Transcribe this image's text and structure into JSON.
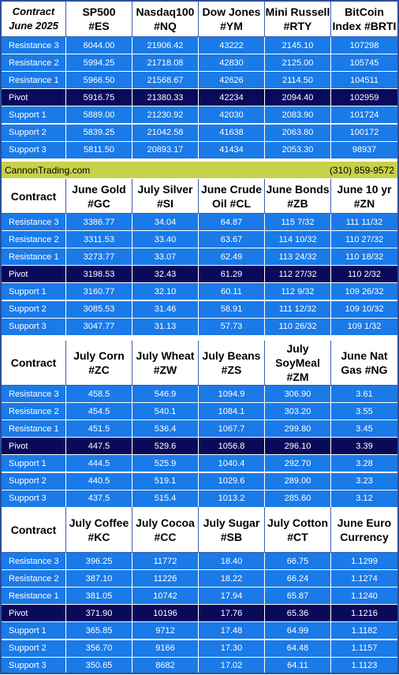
{
  "row_labels": [
    "Resistance 3",
    "Resistance 2",
    "Resistance 1",
    "Pivot",
    "Support 1",
    "Support 2",
    "Support 3"
  ],
  "banner": {
    "site": "CannonTrading.com",
    "phone": "(310) 859-9572"
  },
  "sections": [
    {
      "first_header": [
        "Contract",
        "June 2025"
      ],
      "columns": [
        [
          "SP500",
          "#ES"
        ],
        [
          "Nasdaq100",
          "#NQ"
        ],
        [
          "Dow Jones",
          "#YM"
        ],
        [
          "Mini Russell",
          "#RTY"
        ],
        [
          "BitCoin",
          "Index #BRTI"
        ]
      ],
      "values": [
        [
          "6044.00",
          "21906.42",
          "43222",
          "2145.10",
          "107298"
        ],
        [
          "5994.25",
          "21718.08",
          "42830",
          "2125.00",
          "105745"
        ],
        [
          "5966.50",
          "21568.67",
          "42626",
          "2114.50",
          "104511"
        ],
        [
          "5916.75",
          "21380.33",
          "42234",
          "2094.40",
          "102959"
        ],
        [
          "5889.00",
          "21230.92",
          "42030",
          "2083.90",
          "101724"
        ],
        [
          "5839.25",
          "21042.58",
          "41638",
          "2063.80",
          "100172"
        ],
        [
          "5811.50",
          "20893.17",
          "41434",
          "2053.30",
          "98937"
        ]
      ]
    },
    {
      "first_header": [
        "Contract"
      ],
      "columns": [
        [
          "June Gold",
          "#GC"
        ],
        [
          "July Silver",
          "#SI"
        ],
        [
          "June Crude",
          "Oil #CL"
        ],
        [
          "June Bonds",
          "#ZB"
        ],
        [
          "June 10 yr",
          "#ZN"
        ]
      ],
      "values": [
        [
          "3386.77",
          "34.04",
          "64.87",
          "115  7/32",
          "111 11/32"
        ],
        [
          "3311.53",
          "33.40",
          "63.67",
          "114 10/32",
          "110 27/32"
        ],
        [
          "3273.77",
          "33.07",
          "62.49",
          "113 24/32",
          "110 18/32"
        ],
        [
          "3198.53",
          "32.43",
          "61.29",
          "112 27/32",
          "110  2/32"
        ],
        [
          "3160.77",
          "32.10",
          "60.11",
          "112  9/32",
          "109 26/32"
        ],
        [
          "3085.53",
          "31.46",
          "58.91",
          "111 12/32",
          "109 10/32"
        ],
        [
          "3047.77",
          "31.13",
          "57.73",
          "110 26/32",
          "109  1/32"
        ]
      ]
    },
    {
      "first_header": [
        "Contract"
      ],
      "columns": [
        [
          "July Corn",
          "#ZC"
        ],
        [
          "July  Wheat",
          "#ZW"
        ],
        [
          "July Beans",
          "#ZS"
        ],
        [
          "July",
          "SoyMeal",
          "#ZM"
        ],
        [
          "June Nat",
          "Gas #NG"
        ]
      ],
      "values": [
        [
          "458.5",
          "546.9",
          "1094.9",
          "306.90",
          "3.61"
        ],
        [
          "454.5",
          "540.1",
          "1084.1",
          "303.20",
          "3.55"
        ],
        [
          "451.5",
          "536.4",
          "1067.7",
          "299.80",
          "3.45"
        ],
        [
          "447.5",
          "529.6",
          "1056.8",
          "296.10",
          "3.39"
        ],
        [
          "444.5",
          "525.9",
          "1040.4",
          "292.70",
          "3.28"
        ],
        [
          "440.5",
          "519.1",
          "1029.6",
          "289.00",
          "3.23"
        ],
        [
          "437.5",
          "515.4",
          "1013.2",
          "285.60",
          "3.12"
        ]
      ]
    },
    {
      "first_header": [
        "Contract"
      ],
      "columns": [
        [
          "July Coffee",
          "#KC"
        ],
        [
          "July Cocoa",
          "#CC"
        ],
        [
          "July Sugar",
          "#SB"
        ],
        [
          "July Cotton",
          "#CT"
        ],
        [
          "June Euro",
          "Currency"
        ]
      ],
      "values": [
        [
          "396.25",
          "11772",
          "18.40",
          "66.75",
          "1.1299"
        ],
        [
          "387.10",
          "11226",
          "18.22",
          "66.24",
          "1.1274"
        ],
        [
          "381.05",
          "10742",
          "17.94",
          "65.87",
          "1.1240"
        ],
        [
          "371.90",
          "10196",
          "17.76",
          "65.36",
          "1.1216"
        ],
        [
          "365.85",
          "9712",
          "17.48",
          "64.99",
          "1.1182"
        ],
        [
          "356.70",
          "9166",
          "17.30",
          "64.48",
          "1.1157"
        ],
        [
          "350.65",
          "8682",
          "17.02",
          "64.11",
          "1.1123"
        ]
      ]
    }
  ]
}
